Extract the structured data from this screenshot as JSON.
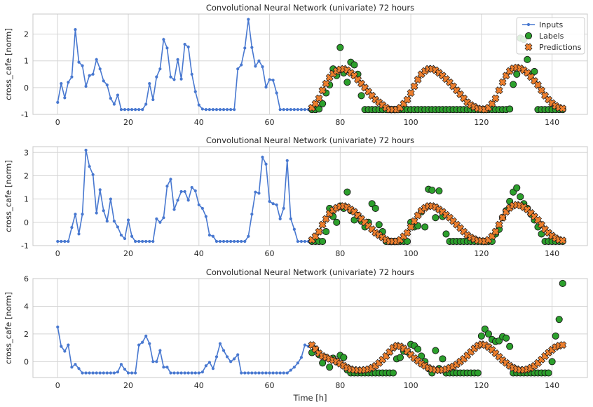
{
  "chart_data": {
    "type": "line",
    "figure_xlabel": "Time [h]",
    "legend": {
      "placement": "top-right",
      "entries": [
        "Inputs",
        "Labels",
        "Predictions"
      ]
    },
    "colors": {
      "inputs": "#4878d0",
      "labels": "#2ca02c",
      "predictions": "#ee7f2d",
      "marker_edge": "#1a1a1a",
      "grid": "#d5d5d5",
      "frame": "#c8c8c8"
    },
    "xlim": [
      -7,
      150
    ],
    "xticks": [
      0,
      20,
      40,
      60,
      80,
      100,
      120,
      140
    ],
    "panels": [
      {
        "title": "Convolutional Neural Network (univariate) 72 hours",
        "ylabel": "cross_cafe [norm]",
        "ylim": [
          -1,
          2.75
        ],
        "yticks": [
          -1,
          0,
          1,
          2
        ],
        "inputs": [
          -0.55,
          0.15,
          -0.38,
          0.2,
          0.4,
          2.17,
          0.95,
          0.82,
          0.05,
          0.45,
          0.5,
          1.05,
          0.7,
          0.25,
          0.1,
          -0.4,
          -0.62,
          -0.28,
          -0.82,
          -0.82,
          -0.82,
          -0.82,
          -0.82,
          -0.82,
          -0.82,
          -0.62,
          0.15,
          -0.45,
          0.4,
          0.7,
          1.8,
          1.48,
          0.4,
          0.3,
          1.05,
          0.32,
          1.62,
          1.52,
          0.5,
          -0.15,
          -0.65,
          -0.8,
          -0.82,
          -0.82,
          -0.82,
          -0.82,
          -0.82,
          -0.82,
          -0.82,
          -0.82,
          -0.82,
          0.7,
          0.85,
          1.48,
          2.55,
          1.5,
          0.8,
          1.0,
          0.78,
          0.02,
          0.3,
          0.28,
          -0.2,
          -0.82,
          -0.82,
          -0.82,
          -0.82,
          -0.82,
          -0.82,
          -0.82,
          -0.82,
          -0.82
        ],
        "labels": [
          -0.82,
          -0.82,
          -0.8,
          -0.6,
          -0.2,
          0.1,
          0.7,
          0.45,
          1.5,
          0.55,
          0.2,
          0.95,
          0.85,
          0.5,
          -0.3,
          -0.82,
          -0.82,
          -0.82,
          -0.82,
          -0.82,
          -0.82,
          -0.82,
          -0.82,
          -0.82,
          -0.82,
          -0.82,
          -0.82,
          -0.82,
          -0.82,
          -0.82,
          -0.82,
          -0.82,
          -0.82,
          -0.82,
          -0.82,
          -0.82,
          -0.82,
          -0.82,
          -0.82,
          -0.82,
          -0.82,
          -0.82,
          -0.82,
          -0.82,
          -0.82,
          -0.82,
          -0.82,
          -0.82,
          -0.82,
          -0.82,
          -0.82,
          -0.82,
          -0.82,
          -0.82,
          -0.82,
          -0.82,
          -0.8,
          0.12,
          0.5,
          1.85,
          1.8,
          1.05,
          0.5,
          0.6,
          -0.82,
          -0.82,
          -0.82,
          -0.82,
          -0.82,
          -0.82,
          -0.82,
          -0.82
        ],
        "predictions": [
          -0.75,
          -0.6,
          -0.4,
          -0.1,
          0.15,
          0.38,
          0.52,
          0.62,
          0.68,
          0.7,
          0.65,
          0.55,
          0.45,
          0.3,
          0.15,
          0.0,
          -0.15,
          -0.3,
          -0.45,
          -0.55,
          -0.65,
          -0.75,
          -0.82,
          -0.82,
          -0.82,
          -0.75,
          -0.6,
          -0.45,
          -0.2,
          0.05,
          0.3,
          0.5,
          0.62,
          0.7,
          0.7,
          0.65,
          0.55,
          0.45,
          0.32,
          0.2,
          0.05,
          -0.1,
          -0.25,
          -0.4,
          -0.55,
          -0.65,
          -0.72,
          -0.78,
          -0.8,
          -0.82,
          -0.75,
          -0.6,
          -0.4,
          -0.1,
          0.2,
          0.45,
          0.62,
          0.72,
          0.75,
          0.72,
          0.65,
          0.55,
          0.4,
          0.25,
          0.1,
          -0.1,
          -0.3,
          -0.45,
          -0.58,
          -0.68,
          -0.75,
          -0.78
        ]
      },
      {
        "title": "Convolutional Neural Network (univariate) 72 hours",
        "ylabel": "cross_cafe [norm]",
        "ylim": [
          -1,
          3.25
        ],
        "yticks": [
          -1,
          0,
          1,
          2,
          3
        ],
        "inputs": [
          -0.82,
          -0.82,
          -0.82,
          -0.82,
          -0.22,
          0.35,
          -0.5,
          0.35,
          3.1,
          2.4,
          2.05,
          0.4,
          1.4,
          0.5,
          0.05,
          1.0,
          0.05,
          -0.2,
          -0.55,
          -0.7,
          0.1,
          -0.6,
          -0.82,
          -0.82,
          -0.82,
          -0.82,
          -0.82,
          -0.82,
          0.15,
          0.0,
          0.2,
          1.55,
          1.85,
          0.55,
          0.95,
          1.32,
          1.32,
          0.95,
          1.5,
          1.35,
          0.75,
          0.6,
          0.25,
          -0.55,
          -0.6,
          -0.82,
          -0.82,
          -0.82,
          -0.82,
          -0.82,
          -0.82,
          -0.82,
          -0.82,
          -0.82,
          -0.6,
          0.35,
          1.3,
          1.25,
          2.8,
          2.5,
          0.9,
          0.8,
          0.75,
          0.15,
          0.6,
          2.65,
          0.15,
          -0.3,
          -0.82,
          -0.82,
          -0.82,
          -0.82
        ],
        "labels": [
          -0.82,
          -0.82,
          -0.82,
          -0.82,
          -0.4,
          0.6,
          0.25,
          0.0,
          0.7,
          0.6,
          1.3,
          0.5,
          0.1,
          0.3,
          0.05,
          -0.2,
          0.0,
          0.8,
          0.6,
          -0.1,
          -0.4,
          -0.82,
          -0.82,
          -0.82,
          -0.82,
          -0.82,
          -0.82,
          -0.82,
          0.0,
          -0.2,
          -0.15,
          0.45,
          -0.2,
          1.42,
          1.38,
          0.2,
          1.35,
          0.25,
          -0.5,
          -0.82,
          -0.82,
          -0.82,
          -0.82,
          -0.82,
          -0.82,
          -0.82,
          -0.82,
          -0.82,
          -0.82,
          -0.82,
          -0.82,
          -0.82,
          -0.5,
          -0.3,
          0.2,
          0.5,
          0.9,
          1.3,
          1.48,
          1.1,
          0.8,
          0.6,
          0.35,
          0.1,
          -0.2,
          -0.5,
          -0.82,
          -0.82,
          -0.82,
          -0.82,
          -0.82,
          -0.82
        ],
        "predictions": [
          -0.75,
          -0.6,
          -0.4,
          -0.1,
          0.15,
          0.38,
          0.52,
          0.62,
          0.68,
          0.7,
          0.65,
          0.55,
          0.45,
          0.3,
          0.15,
          0.0,
          -0.15,
          -0.3,
          -0.45,
          -0.55,
          -0.65,
          -0.75,
          -0.82,
          -0.82,
          -0.82,
          -0.75,
          -0.6,
          -0.45,
          -0.2,
          0.05,
          0.3,
          0.5,
          0.62,
          0.7,
          0.7,
          0.65,
          0.55,
          0.45,
          0.32,
          0.2,
          0.05,
          -0.1,
          -0.25,
          -0.4,
          -0.55,
          -0.65,
          -0.72,
          -0.78,
          -0.8,
          -0.82,
          -0.75,
          -0.6,
          -0.4,
          -0.1,
          0.2,
          0.45,
          0.62,
          0.72,
          0.75,
          0.72,
          0.65,
          0.55,
          0.4,
          0.25,
          0.1,
          -0.1,
          -0.3,
          -0.45,
          -0.58,
          -0.68,
          -0.75,
          -0.78
        ]
      },
      {
        "title": "Convolutional Neural Network (univariate) 72 hours",
        "ylabel": "cross_cafe [norm]",
        "ylim": [
          -1.15,
          6
        ],
        "yticks": [
          0,
          2,
          4,
          6
        ],
        "inputs": [
          2.5,
          1.1,
          0.75,
          1.2,
          -0.4,
          -0.2,
          -0.5,
          -0.82,
          -0.82,
          -0.82,
          -0.82,
          -0.82,
          -0.82,
          -0.82,
          -0.82,
          -0.82,
          -0.82,
          -0.75,
          -0.2,
          -0.55,
          -0.82,
          -0.82,
          -0.82,
          1.2,
          1.4,
          1.85,
          1.3,
          0.0,
          0.0,
          0.8,
          -0.4,
          -0.4,
          -0.82,
          -0.82,
          -0.82,
          -0.82,
          -0.82,
          -0.82,
          -0.82,
          -0.82,
          -0.82,
          -0.75,
          -0.3,
          -0.05,
          -0.5,
          0.35,
          1.3,
          0.8,
          0.35,
          0.0,
          0.2,
          0.5,
          -0.82,
          -0.82,
          -0.82,
          -0.82,
          -0.82,
          -0.82,
          -0.82,
          -0.82,
          -0.82,
          -0.82,
          -0.82,
          -0.82,
          -0.82,
          -0.82,
          -0.62,
          -0.4,
          -0.1,
          0.3,
          1.2,
          1.1
        ],
        "labels": [
          0.65,
          0.9,
          0.5,
          -0.1,
          0.3,
          -0.4,
          0.25,
          0.0,
          0.45,
          0.3,
          -0.6,
          -0.82,
          -0.82,
          -0.82,
          -0.82,
          -0.82,
          -0.82,
          -0.82,
          -0.82,
          -0.82,
          -0.82,
          -0.82,
          -0.82,
          -0.82,
          0.2,
          0.3,
          0.75,
          0.7,
          1.25,
          1.15,
          0.9,
          0.4,
          0.0,
          -0.5,
          -0.82,
          0.8,
          -0.5,
          0.2,
          -0.82,
          -0.82,
          -0.82,
          -0.82,
          -0.82,
          -0.82,
          -0.82,
          -0.82,
          -0.82,
          -0.82,
          1.85,
          2.35,
          2.0,
          1.6,
          1.45,
          1.5,
          1.8,
          1.7,
          1.1,
          -0.82,
          -0.82,
          -0.82,
          -0.82,
          -0.82,
          -0.82,
          -0.82,
          -0.82,
          -0.82,
          -0.82,
          -0.82,
          0.0,
          1.85,
          3.05,
          5.65
        ],
        "predictions": [
          1.2,
          0.9,
          0.6,
          0.4,
          0.3,
          0.2,
          0.1,
          0.0,
          -0.15,
          -0.3,
          -0.45,
          -0.55,
          -0.6,
          -0.62,
          -0.62,
          -0.6,
          -0.55,
          -0.45,
          -0.3,
          -0.1,
          0.15,
          0.4,
          0.7,
          1.0,
          1.15,
          1.1,
          0.95,
          0.75,
          0.5,
          0.25,
          0.05,
          -0.15,
          -0.3,
          -0.45,
          -0.55,
          -0.6,
          -0.62,
          -0.6,
          -0.55,
          -0.45,
          -0.35,
          -0.2,
          0.0,
          0.2,
          0.45,
          0.7,
          0.95,
          1.15,
          1.25,
          1.2,
          1.05,
          0.85,
          0.6,
          0.35,
          0.1,
          -0.1,
          -0.3,
          -0.45,
          -0.55,
          -0.6,
          -0.6,
          -0.55,
          -0.45,
          -0.3,
          -0.1,
          0.15,
          0.4,
          0.65,
          0.85,
          1.05,
          1.15,
          1.2
        ]
      }
    ]
  }
}
